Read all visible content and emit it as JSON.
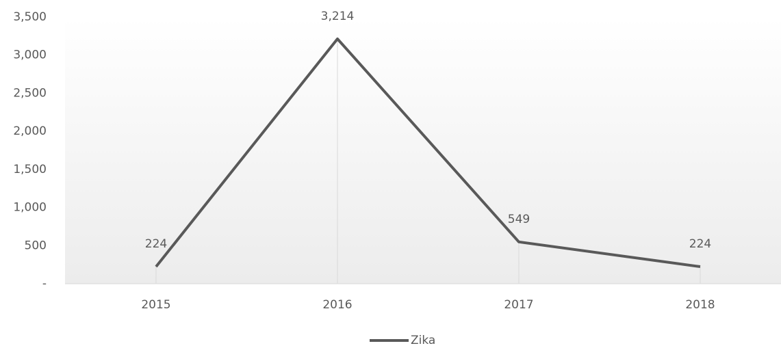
{
  "chart_data": {
    "type": "line",
    "categories": [
      "2015",
      "2016",
      "2017",
      "2018"
    ],
    "series": [
      {
        "name": "Zika",
        "color": "#595959",
        "values": [
          224,
          3214,
          549,
          224
        ],
        "value_labels": [
          "224",
          "3,214",
          "549",
          "224"
        ]
      }
    ],
    "ylim": [
      0,
      3500
    ],
    "yticks": [
      {
        "value": 0,
        "label": "-"
      },
      500,
      {
        "value": 1000,
        "label": "1,000"
      },
      {
        "value": 1500,
        "label": "1,500"
      },
      {
        "value": 2000,
        "label": "2,000"
      },
      {
        "value": 2500,
        "label": "2,500"
      },
      {
        "value": 3000,
        "label": "3,000"
      },
      {
        "value": 3500,
        "label": "3,500"
      }
    ],
    "legend": "bottom"
  }
}
